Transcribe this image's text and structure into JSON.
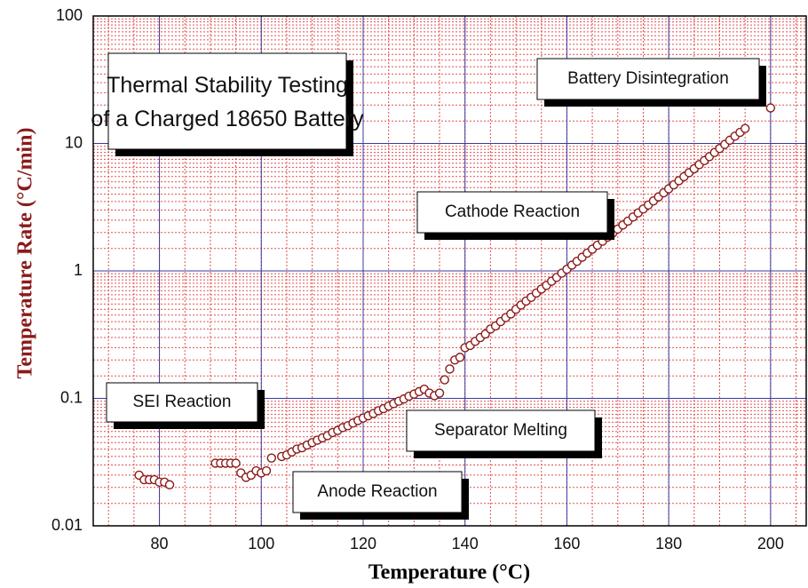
{
  "chart_data": {
    "type": "scatter",
    "title": [
      "Thermal Stability Testing",
      "of a Charged 18650 Battery"
    ],
    "x_label": "Temperature (°C)",
    "y_label": "Temperature Rate (°C/min)",
    "y_scale": "log",
    "grid": true,
    "xlim": [
      67,
      207
    ],
    "xticks": [
      80,
      100,
      120,
      140,
      160,
      180,
      200
    ],
    "ylim": [
      0.01,
      100
    ],
    "yticks": [
      0.01,
      0.1,
      1,
      10,
      100
    ],
    "annotations": [
      "Battery Disintegration",
      "Cathode Reaction",
      "SEI Reaction",
      "Separator Melting",
      "Anode Reaction"
    ],
    "series": [
      {
        "color": "#8b1a1a",
        "x": [
          76,
          77,
          78,
          79,
          80,
          81,
          82,
          91,
          92,
          93,
          94,
          95,
          96,
          97,
          98,
          99,
          100,
          101,
          102,
          104,
          105,
          106,
          107,
          108,
          109,
          110,
          111,
          112,
          113,
          114,
          115,
          116,
          117,
          118,
          119,
          120,
          121,
          122,
          123,
          124,
          125,
          126,
          127,
          128,
          129,
          130,
          131,
          132,
          133,
          134,
          135,
          136,
          137,
          138,
          139,
          140,
          141,
          142,
          143,
          144,
          145,
          146,
          147,
          148,
          149,
          150,
          151,
          152,
          153,
          154,
          155,
          156,
          157,
          158,
          159,
          160,
          161,
          162,
          163,
          164,
          165,
          166,
          167,
          168,
          169,
          170,
          171,
          172,
          173,
          174,
          175,
          176,
          177,
          178,
          179,
          180,
          181,
          182,
          183,
          184,
          185,
          186,
          187,
          188,
          189,
          190,
          191,
          192,
          193,
          194,
          195,
          200
        ],
        "values": [
          0.025,
          0.023,
          0.023,
          0.023,
          0.022,
          0.022,
          0.021,
          0.031,
          0.031,
          0.031,
          0.031,
          0.031,
          0.026,
          0.024,
          0.025,
          0.027,
          0.026,
          0.027,
          0.034,
          0.035,
          0.036,
          0.038,
          0.04,
          0.041,
          0.043,
          0.045,
          0.047,
          0.049,
          0.051,
          0.054,
          0.056,
          0.059,
          0.061,
          0.064,
          0.067,
          0.07,
          0.073,
          0.076,
          0.08,
          0.083,
          0.087,
          0.091,
          0.095,
          0.099,
          0.104,
          0.108,
          0.113,
          0.118,
          0.11,
          0.105,
          0.11,
          0.14,
          0.17,
          0.2,
          0.21,
          0.25,
          0.26,
          0.28,
          0.3,
          0.32,
          0.35,
          0.37,
          0.4,
          0.43,
          0.46,
          0.5,
          0.54,
          0.58,
          0.62,
          0.67,
          0.72,
          0.77,
          0.83,
          0.89,
          0.96,
          1.03,
          1.11,
          1.19,
          1.28,
          1.38,
          1.48,
          1.59,
          1.71,
          1.84,
          1.98,
          2.13,
          2.29,
          2.46,
          2.65,
          2.85,
          3.06,
          3.29,
          3.54,
          3.81,
          4.1,
          4.41,
          4.74,
          5.1,
          5.48,
          5.9,
          6.34,
          6.82,
          7.34,
          7.89,
          8.49,
          9.13,
          9.82,
          10.6,
          11.4,
          12.2,
          13.1,
          19
        ]
      }
    ]
  }
}
